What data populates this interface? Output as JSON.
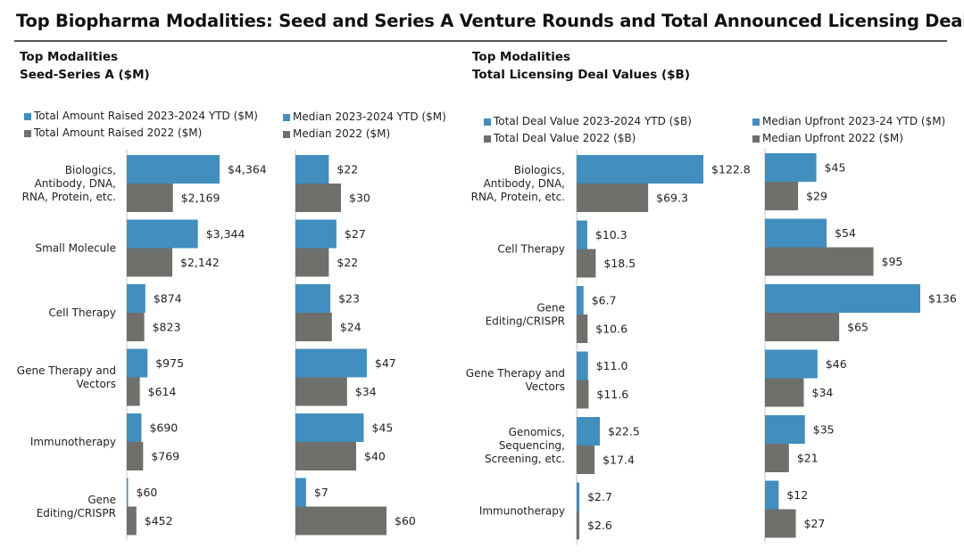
{
  "title": "Top Biopharma Modalities: Seed and Series A Venture Rounds and Total Announced Licensing Deal Value",
  "colors": {
    "current": "#428ebf",
    "prior": "#6f6f6b",
    "axis": "#d8d8d8"
  },
  "sections": [
    {
      "title_line1": "Top Modalities",
      "title_line2": "Seed-Series A ($M)"
    },
    {
      "title_line1": "Top Modalities",
      "title_line2": "Total Licensing Deal Values ($B)"
    }
  ],
  "chart_data": [
    {
      "type": "bar",
      "orientation": "horizontal",
      "title": "Top Modalities Seed-Series A ($M) - Total Amount Raised",
      "categories": [
        [
          "Biologics,",
          "Antibody, DNA,",
          "RNA, Protein, etc."
        ],
        [
          "Small Molecule"
        ],
        [
          "Cell Therapy"
        ],
        [
          "Gene Therapy and",
          "Vectors"
        ],
        [
          "Immunotherapy"
        ],
        [
          "Gene",
          "Editing/CRISPR"
        ]
      ],
      "series": [
        {
          "name": "Total Amount Raised 2023-2024 YTD ($M)",
          "values": [
            4364,
            3344,
            874,
            975,
            690,
            60
          ],
          "labels": [
            "$4,364",
            "$3,344",
            "$874",
            "$975",
            "$690",
            "$60"
          ]
        },
        {
          "name": "Total Amount Raised 2022 ($M)",
          "values": [
            2169,
            2142,
            823,
            614,
            769,
            452
          ],
          "labels": [
            "$2,169",
            "$2,142",
            "$823",
            "$614",
            "$769",
            "$452"
          ]
        }
      ],
      "legend_position": "top-left",
      "grid": false
    },
    {
      "type": "bar",
      "orientation": "horizontal",
      "title": "Top Modalities Seed-Series A ($M) - Median",
      "categories": [
        [
          "Biologics,",
          "Antibody, DNA,",
          "RNA, Protein, etc."
        ],
        [
          "Small Molecule"
        ],
        [
          "Cell Therapy"
        ],
        [
          "Gene Therapy and",
          "Vectors"
        ],
        [
          "Immunotherapy"
        ],
        [
          "Gene",
          "Editing/CRISPR"
        ]
      ],
      "series": [
        {
          "name": "Median 2023-2024 YTD ($M)",
          "values": [
            22,
            27,
            23,
            47,
            45,
            7
          ],
          "labels": [
            "$22",
            "$27",
            "$23",
            "$47",
            "$45",
            "$7"
          ]
        },
        {
          "name": "Median 2022 ($M)",
          "values": [
            30,
            22,
            24,
            34,
            40,
            60
          ],
          "labels": [
            "$30",
            "$22",
            "$24",
            "$34",
            "$40",
            "$60"
          ]
        }
      ],
      "legend_position": "top-left",
      "grid": false
    },
    {
      "type": "bar",
      "orientation": "horizontal",
      "title": "Top Modalities Total Licensing Deal Values ($B)",
      "categories": [
        [
          "Biologics,",
          "Antibody, DNA,",
          "RNA, Protein, etc."
        ],
        [
          "Cell Therapy"
        ],
        [
          "Gene",
          "Editing/CRISPR"
        ],
        [
          "Gene Therapy and",
          "Vectors"
        ],
        [
          "Genomics,",
          "Sequencing,",
          "Screening, etc."
        ],
        [
          "Immunotherapy"
        ]
      ],
      "series": [
        {
          "name": "Total Deal Value 2023-2024 YTD ($B)",
          "values": [
            122.8,
            10.3,
            6.7,
            11.0,
            22.5,
            2.7
          ],
          "labels": [
            "$122.8",
            "$10.3",
            "$6.7",
            "$11.0",
            "$22.5",
            "$2.7"
          ]
        },
        {
          "name": "Total Deal Value 2022 ($B)",
          "values": [
            69.3,
            18.5,
            10.6,
            11.6,
            17.4,
            2.6
          ],
          "labels": [
            "$69.3",
            "$18.5",
            "$10.6",
            "$11.6",
            "$17.4",
            "$2.6"
          ]
        }
      ],
      "legend_position": "top-left",
      "grid": false
    },
    {
      "type": "bar",
      "orientation": "horizontal",
      "title": "Top Modalities Total Licensing Deal Values - Median Upfront ($M)",
      "categories": [
        [
          "Biologics,",
          "Antibody, DNA,",
          "RNA, Protein, etc."
        ],
        [
          "Cell Therapy"
        ],
        [
          "Gene",
          "Editing/CRISPR"
        ],
        [
          "Gene Therapy and",
          "Vectors"
        ],
        [
          "Genomics,",
          "Sequencing,",
          "Screening, etc."
        ],
        [
          "Immunotherapy"
        ]
      ],
      "series": [
        {
          "name": "Median Upfront 2023-24 YTD ($M)",
          "values": [
            45,
            54,
            136,
            46,
            35,
            12
          ],
          "labels": [
            "$45",
            "$54",
            "$136",
            "$46",
            "$35",
            "$12"
          ]
        },
        {
          "name": "Median Upfront 2022 ($M)",
          "values": [
            29,
            95,
            65,
            34,
            21,
            27
          ],
          "labels": [
            "$29",
            "$95",
            "$65",
            "$34",
            "$21",
            "$27"
          ]
        }
      ],
      "legend_position": "top-left",
      "grid": false
    }
  ]
}
